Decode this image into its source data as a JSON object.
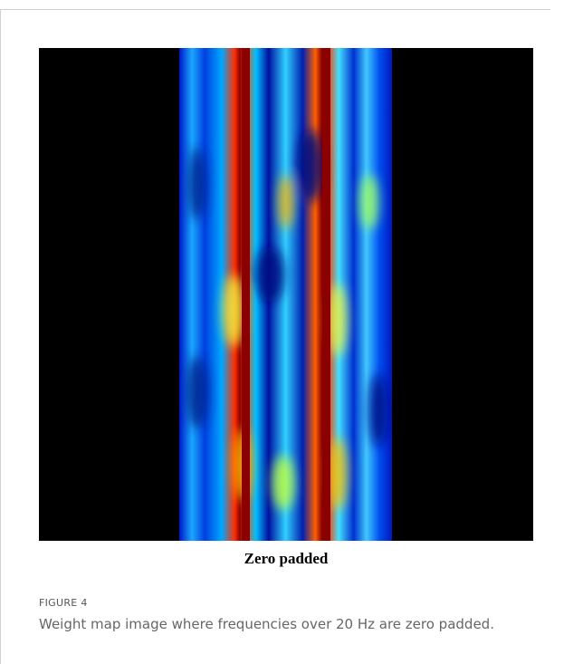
{
  "figure": {
    "image_label": "Zero padded",
    "label": "FIGURE 4",
    "caption": "Weight map image where frequencies over 20 Hz are zero padded."
  }
}
